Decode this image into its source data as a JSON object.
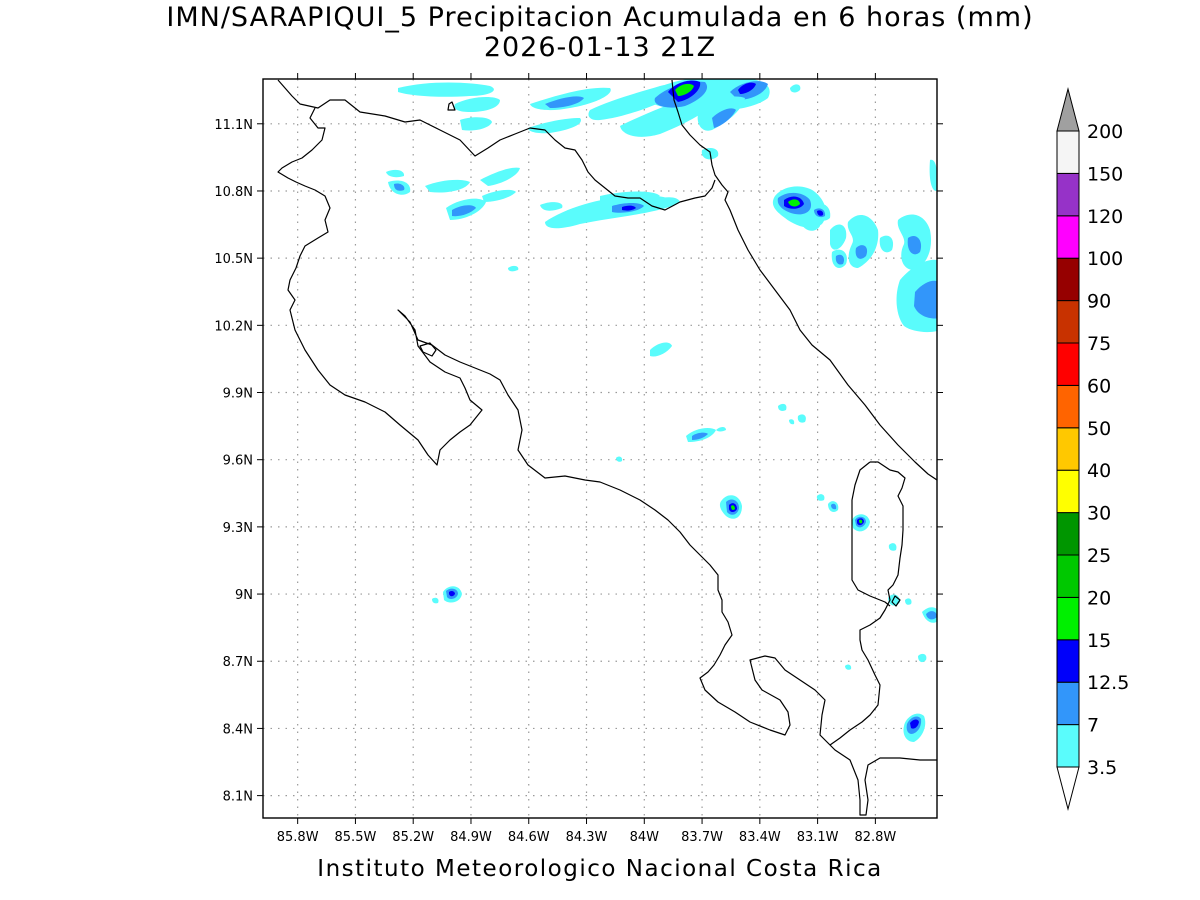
{
  "title": {
    "line1": "IMN/SARAPIQUI_5 Precipitacion Acumulada en 6 horas (mm)",
    "line2": "2026-01-13 21Z"
  },
  "footer": "Instituto Meteorologico Nacional Costa Rica",
  "map": {
    "lon_range": [
      -85.98,
      -82.48
    ],
    "lat_range": [
      8.0,
      11.3
    ],
    "x_ticks": [
      {
        "value": -85.8,
        "label": "85.8W"
      },
      {
        "value": -85.5,
        "label": "85.5W"
      },
      {
        "value": -85.2,
        "label": "85.2W"
      },
      {
        "value": -84.9,
        "label": "84.9W"
      },
      {
        "value": -84.6,
        "label": "84.6W"
      },
      {
        "value": -84.3,
        "label": "84.3W"
      },
      {
        "value": -84.0,
        "label": "84W"
      },
      {
        "value": -83.7,
        "label": "83.7W"
      },
      {
        "value": -83.4,
        "label": "83.4W"
      },
      {
        "value": -83.1,
        "label": "83.1W"
      },
      {
        "value": -82.8,
        "label": "82.8W"
      }
    ],
    "y_ticks": [
      {
        "value": 11.1,
        "label": "11.1N"
      },
      {
        "value": 10.8,
        "label": "10.8N"
      },
      {
        "value": 10.5,
        "label": "10.5N"
      },
      {
        "value": 10.2,
        "label": "10.2N"
      },
      {
        "value": 9.9,
        "label": "9.9N"
      },
      {
        "value": 9.6,
        "label": "9.6N"
      },
      {
        "value": 9.3,
        "label": "9.3N"
      },
      {
        "value": 9.0,
        "label": "9N"
      },
      {
        "value": 8.7,
        "label": "8.7N"
      },
      {
        "value": 8.4,
        "label": "8.4N"
      },
      {
        "value": 8.1,
        "label": "8.1N"
      }
    ],
    "grid": true,
    "colors": {
      "c1": "#5afcfc",
      "c2": "#3296fa",
      "c3": "#0000fa",
      "c4": "#00f000"
    },
    "precip_cells": [
      {
        "lon": -83.82,
        "lat": 11.27,
        "level": 4
      },
      {
        "lon": -83.47,
        "lat": 11.27,
        "level": 3
      },
      {
        "lon": -83.23,
        "lat": 10.74,
        "level": 4
      },
      {
        "lon": -83.07,
        "lat": 10.7,
        "level": 3
      },
      {
        "lon": -84.08,
        "lat": 10.73,
        "level": 3
      },
      {
        "lon": -83.52,
        "lat": 9.38,
        "level": 4
      },
      {
        "lon": -82.92,
        "lat": 9.33,
        "level": 4
      },
      {
        "lon": -85.04,
        "lat": 9.01,
        "level": 3
      },
      {
        "lon": -82.7,
        "lat": 8.43,
        "level": 3
      },
      {
        "lon": -82.5,
        "lat": 10.35,
        "level": 2
      }
    ]
  },
  "legend": {
    "items": [
      {
        "label": "3.5",
        "color": "#5afcfc"
      },
      {
        "label": "7",
        "color": "#3296fa"
      },
      {
        "label": "12.5",
        "color": "#0000fa"
      },
      {
        "label": "15",
        "color": "#00f000"
      },
      {
        "label": "20",
        "color": "#00c800"
      },
      {
        "label": "25",
        "color": "#009600"
      },
      {
        "label": "30",
        "color": "#ffff00"
      },
      {
        "label": "40",
        "color": "#ffc800"
      },
      {
        "label": "50",
        "color": "#ff6400"
      },
      {
        "label": "60",
        "color": "#ff0000"
      },
      {
        "label": "75",
        "color": "#c83200"
      },
      {
        "label": "90",
        "color": "#960000"
      },
      {
        "label": "100",
        "color": "#ff00ff"
      },
      {
        "label": "120",
        "color": "#9632c8"
      },
      {
        "label": "150",
        "color": "#f5f5f5"
      },
      {
        "label": "200",
        "color": "#a0a0a0"
      }
    ]
  }
}
